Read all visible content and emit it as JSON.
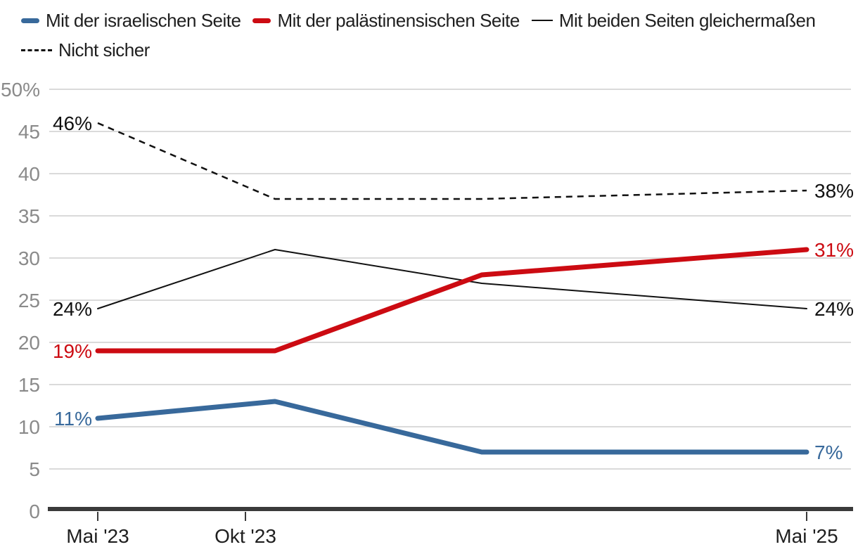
{
  "colors": {
    "israel_blue": "#38699b",
    "palestine_red": "#cc0b12",
    "line_black": "#111111",
    "axis_dark": "#3a3a3a",
    "gridline": "#dadada",
    "y_label_gray": "#8a8a8a",
    "x_label_dark": "#1f1f1f"
  },
  "chart_data": {
    "type": "line",
    "title": "",
    "xlabel": "",
    "ylabel": "",
    "ylim": [
      0,
      50
    ],
    "grid": "horizontal",
    "legend_position": "top",
    "x_months": [
      0,
      6,
      13,
      24
    ],
    "series": [
      {
        "name": "Mit der israelischen Seite",
        "values": [
          11,
          13,
          7,
          7
        ],
        "color": "#38699b",
        "width": 7,
        "dash": "",
        "start_label": "11%",
        "end_label": "7%",
        "swatch": "thick"
      },
      {
        "name": "Mit der palästinensischen Seite",
        "values": [
          19,
          19,
          28,
          31
        ],
        "color": "#cc0b12",
        "width": 7,
        "dash": "",
        "start_label": "19%",
        "end_label": "31%",
        "swatch": "thick"
      },
      {
        "name": "Mit beiden Seiten gleichermaßen",
        "values": [
          24,
          31,
          27,
          24
        ],
        "color": "#111111",
        "width": 2,
        "dash": "",
        "start_label": "24%",
        "end_label": "24%",
        "swatch": "thin"
      },
      {
        "name": "Nicht sicher",
        "values": [
          46,
          37,
          37,
          38
        ],
        "color": "#111111",
        "width": 2.5,
        "dash": "9 7",
        "start_label": "46%",
        "end_label": "38%",
        "swatch": "dash"
      }
    ],
    "x_ticks": [
      {
        "pos": 0,
        "label": "Mai '23"
      },
      {
        "pos": 5,
        "label": "Okt '23"
      },
      {
        "pos": 24,
        "label": "Mai '25"
      }
    ],
    "y_ticks": [
      {
        "v": 0,
        "label": "0"
      },
      {
        "v": 5,
        "label": "5"
      },
      {
        "v": 10,
        "label": "10"
      },
      {
        "v": 15,
        "label": "15"
      },
      {
        "v": 20,
        "label": "20"
      },
      {
        "v": 25,
        "label": "25"
      },
      {
        "v": 30,
        "label": "30"
      },
      {
        "v": 35,
        "label": "35"
      },
      {
        "v": 40,
        "label": "40"
      },
      {
        "v": 45,
        "label": "45"
      },
      {
        "v": 50,
        "label": "50%"
      }
    ]
  }
}
